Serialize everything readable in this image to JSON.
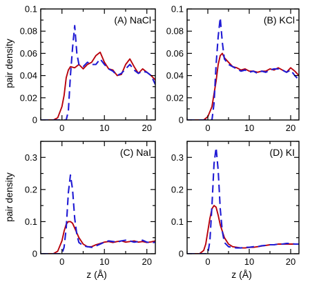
{
  "figure": {
    "shared_ylabel_top": "pair density",
    "shared_ylabel_bottom": "pair density",
    "shared_xlabel_left": "z (Å)",
    "shared_xlabel_right": "z (Å)"
  },
  "chart_data": [
    {
      "type": "line",
      "panel_label": "(A) NaCl",
      "xlabel": "",
      "ylabel": "pair density",
      "xlim": [
        -5,
        22
      ],
      "ylim": [
        0,
        0.1
      ],
      "xticks": [
        0,
        10,
        20
      ],
      "yticks": [
        0,
        0.02,
        0.04,
        0.06,
        0.08,
        0.1
      ],
      "ytick_labels": [
        "0",
        "0.02",
        "0.04",
        "0.06",
        "0.08",
        "0.1"
      ],
      "series": [
        {
          "style": "solid",
          "color": "#b8000b",
          "points": [
            [
              -5,
              0
            ],
            [
              -2,
              0
            ],
            [
              -1,
              0.002
            ],
            [
              0,
              0.012
            ],
            [
              0.5,
              0.022
            ],
            [
              1,
              0.038
            ],
            [
              1.5,
              0.045
            ],
            [
              2,
              0.048
            ],
            [
              3,
              0.047
            ],
            [
              4,
              0.05
            ],
            [
              5,
              0.046
            ],
            [
              6,
              0.05
            ],
            [
              7,
              0.052
            ],
            [
              8,
              0.058
            ],
            [
              9,
              0.061
            ],
            [
              10,
              0.052
            ],
            [
              11,
              0.046
            ],
            [
              12,
              0.045
            ],
            [
              13,
              0.04
            ],
            [
              14,
              0.041
            ],
            [
              15,
              0.05
            ],
            [
              16,
              0.055
            ],
            [
              17,
              0.048
            ],
            [
              18,
              0.042
            ],
            [
              19,
              0.046
            ],
            [
              20,
              0.043
            ],
            [
              21,
              0.04
            ],
            [
              22,
              0.036
            ]
          ]
        },
        {
          "style": "dashed",
          "color": "#1f1ad4",
          "points": [
            [
              -5,
              0
            ],
            [
              1,
              0
            ],
            [
              1.5,
              0.008
            ],
            [
              2,
              0.04
            ],
            [
              2.5,
              0.065
            ],
            [
              3,
              0.085
            ],
            [
              3.5,
              0.06
            ],
            [
              4,
              0.05
            ],
            [
              5,
              0.048
            ],
            [
              6,
              0.052
            ],
            [
              7,
              0.05
            ],
            [
              8,
              0.05
            ],
            [
              9,
              0.055
            ],
            [
              10,
              0.05
            ],
            [
              11,
              0.046
            ],
            [
              12,
              0.044
            ],
            [
              13,
              0.04
            ],
            [
              14,
              0.042
            ],
            [
              15,
              0.046
            ],
            [
              16,
              0.05
            ],
            [
              17,
              0.045
            ],
            [
              18,
              0.042
            ],
            [
              19,
              0.044
            ],
            [
              20,
              0.043
            ],
            [
              21,
              0.04
            ],
            [
              22,
              0.032
            ]
          ]
        }
      ]
    },
    {
      "type": "line",
      "panel_label": "(B) KCl",
      "xlabel": "",
      "ylabel": "",
      "xlim": [
        -5,
        22
      ],
      "ylim": [
        0,
        0.1
      ],
      "xticks": [
        0,
        10,
        20
      ],
      "yticks": [
        0,
        0.02,
        0.04,
        0.06,
        0.08,
        0.1
      ],
      "ytick_labels": [
        "0",
        "0.02",
        "0.04",
        "0.06",
        "0.08",
        "0.1"
      ],
      "series": [
        {
          "style": "solid",
          "color": "#b8000b",
          "points": [
            [
              -5,
              0
            ],
            [
              -1,
              0
            ],
            [
              0,
              0.003
            ],
            [
              1,
              0.012
            ],
            [
              2,
              0.035
            ],
            [
              2.5,
              0.05
            ],
            [
              3,
              0.058
            ],
            [
              3.5,
              0.06
            ],
            [
              4,
              0.056
            ],
            [
              5,
              0.052
            ],
            [
              6,
              0.048
            ],
            [
              7,
              0.047
            ],
            [
              8,
              0.045
            ],
            [
              9,
              0.046
            ],
            [
              10,
              0.044
            ],
            [
              11,
              0.044
            ],
            [
              12,
              0.043
            ],
            [
              13,
              0.044
            ],
            [
              14,
              0.044
            ],
            [
              15,
              0.046
            ],
            [
              16,
              0.045
            ],
            [
              17,
              0.047
            ],
            [
              18,
              0.045
            ],
            [
              19,
              0.043
            ],
            [
              20,
              0.047
            ],
            [
              21,
              0.044
            ],
            [
              22,
              0.04
            ]
          ]
        },
        {
          "style": "dashed",
          "color": "#1f1ad4",
          "points": [
            [
              -5,
              0
            ],
            [
              1,
              0
            ],
            [
              1.5,
              0.015
            ],
            [
              2,
              0.05
            ],
            [
              2.5,
              0.075
            ],
            [
              3,
              0.092
            ],
            [
              3.5,
              0.07
            ],
            [
              4,
              0.055
            ],
            [
              5,
              0.05
            ],
            [
              6,
              0.048
            ],
            [
              7,
              0.046
            ],
            [
              8,
              0.044
            ],
            [
              9,
              0.045
            ],
            [
              10,
              0.043
            ],
            [
              11,
              0.044
            ],
            [
              12,
              0.042
            ],
            [
              13,
              0.044
            ],
            [
              14,
              0.043
            ],
            [
              15,
              0.045
            ],
            [
              16,
              0.046
            ],
            [
              17,
              0.046
            ],
            [
              18,
              0.045
            ],
            [
              19,
              0.043
            ],
            [
              20,
              0.045
            ],
            [
              21,
              0.04
            ],
            [
              22,
              0.036
            ]
          ]
        }
      ]
    },
    {
      "type": "line",
      "panel_label": "(C) NaI",
      "xlabel": "z (Å)",
      "ylabel": "pair density",
      "xlim": [
        -5,
        22
      ],
      "ylim": [
        0,
        0.35
      ],
      "xticks": [
        0,
        10,
        20
      ],
      "yticks": [
        0,
        0.1,
        0.2,
        0.3
      ],
      "ytick_labels": [
        "0",
        "0.1",
        "0.2",
        "0.3"
      ],
      "series": [
        {
          "style": "solid",
          "color": "#b8000b",
          "points": [
            [
              -5,
              0
            ],
            [
              -2,
              0
            ],
            [
              -1,
              0.008
            ],
            [
              0,
              0.04
            ],
            [
              0.5,
              0.07
            ],
            [
              1,
              0.092
            ],
            [
              1.5,
              0.1
            ],
            [
              2,
              0.1
            ],
            [
              2.5,
              0.095
            ],
            [
              3,
              0.08
            ],
            [
              4,
              0.05
            ],
            [
              5,
              0.03
            ],
            [
              6,
              0.022
            ],
            [
              7,
              0.022
            ],
            [
              8,
              0.028
            ],
            [
              9,
              0.032
            ],
            [
              10,
              0.036
            ],
            [
              11,
              0.038
            ],
            [
              12,
              0.035
            ],
            [
              13,
              0.038
            ],
            [
              14,
              0.04
            ],
            [
              15,
              0.036
            ],
            [
              16,
              0.038
            ],
            [
              17,
              0.04
            ],
            [
              18,
              0.036
            ],
            [
              19,
              0.038
            ],
            [
              20,
              0.035
            ],
            [
              21,
              0.037
            ],
            [
              22,
              0.04
            ]
          ]
        },
        {
          "style": "dashed",
          "color": "#1f1ad4",
          "points": [
            [
              -5,
              0
            ],
            [
              0,
              0
            ],
            [
              0.5,
              0.02
            ],
            [
              1,
              0.08
            ],
            [
              1.5,
              0.19
            ],
            [
              2,
              0.245
            ],
            [
              2.5,
              0.2
            ],
            [
              3,
              0.11
            ],
            [
              3.5,
              0.06
            ],
            [
              4,
              0.035
            ],
            [
              5,
              0.025
            ],
            [
              6,
              0.022
            ],
            [
              7,
              0.02
            ],
            [
              8,
              0.024
            ],
            [
              9,
              0.03
            ],
            [
              10,
              0.036
            ],
            [
              11,
              0.04
            ],
            [
              12,
              0.038
            ],
            [
              13,
              0.036
            ],
            [
              14,
              0.04
            ],
            [
              15,
              0.042
            ],
            [
              16,
              0.04
            ],
            [
              17,
              0.036
            ],
            [
              18,
              0.038
            ],
            [
              19,
              0.042
            ],
            [
              20,
              0.036
            ],
            [
              21,
              0.034
            ],
            [
              22,
              0.036
            ]
          ]
        }
      ]
    },
    {
      "type": "line",
      "panel_label": "(D) KI",
      "xlabel": "z (Å)",
      "ylabel": "",
      "xlim": [
        -5,
        22
      ],
      "ylim": [
        0,
        0.35
      ],
      "xticks": [
        0,
        10,
        20
      ],
      "yticks": [
        0,
        0.1,
        0.2,
        0.3
      ],
      "ytick_labels": [
        "0",
        "0.1",
        "0.2",
        "0.3"
      ],
      "series": [
        {
          "style": "solid",
          "color": "#b8000b",
          "points": [
            [
              -5,
              0
            ],
            [
              -2,
              0
            ],
            [
              -1,
              0.01
            ],
            [
              -0.5,
              0.03
            ],
            [
              0,
              0.07
            ],
            [
              0.5,
              0.11
            ],
            [
              1,
              0.14
            ],
            [
              1.5,
              0.15
            ],
            [
              2,
              0.145
            ],
            [
              2.5,
              0.12
            ],
            [
              3,
              0.09
            ],
            [
              4,
              0.05
            ],
            [
              5,
              0.03
            ],
            [
              6,
              0.022
            ],
            [
              7,
              0.02
            ],
            [
              8,
              0.018
            ],
            [
              9,
              0.018
            ],
            [
              10,
              0.02
            ],
            [
              11,
              0.02
            ],
            [
              12,
              0.022
            ],
            [
              13,
              0.024
            ],
            [
              14,
              0.026
            ],
            [
              15,
              0.028
            ],
            [
              16,
              0.028
            ],
            [
              17,
              0.03
            ],
            [
              18,
              0.03
            ],
            [
              19,
              0.03
            ],
            [
              20,
              0.03
            ],
            [
              21,
              0.03
            ],
            [
              22,
              0.03
            ]
          ]
        },
        {
          "style": "dashed",
          "color": "#1f1ad4",
          "points": [
            [
              -5,
              0
            ],
            [
              0,
              0
            ],
            [
              0.5,
              0.04
            ],
            [
              1,
              0.15
            ],
            [
              1.5,
              0.28
            ],
            [
              2,
              0.33
            ],
            [
              2.5,
              0.26
            ],
            [
              3,
              0.14
            ],
            [
              3.5,
              0.07
            ],
            [
              4,
              0.035
            ],
            [
              5,
              0.022
            ],
            [
              6,
              0.02
            ],
            [
              7,
              0.018
            ],
            [
              8,
              0.018
            ],
            [
              9,
              0.02
            ],
            [
              10,
              0.02
            ],
            [
              11,
              0.022
            ],
            [
              12,
              0.022
            ],
            [
              13,
              0.025
            ],
            [
              14,
              0.026
            ],
            [
              15,
              0.028
            ],
            [
              16,
              0.028
            ],
            [
              17,
              0.03
            ],
            [
              18,
              0.03
            ],
            [
              19,
              0.032
            ],
            [
              20,
              0.032
            ],
            [
              21,
              0.03
            ],
            [
              22,
              0.03
            ]
          ]
        }
      ]
    }
  ]
}
